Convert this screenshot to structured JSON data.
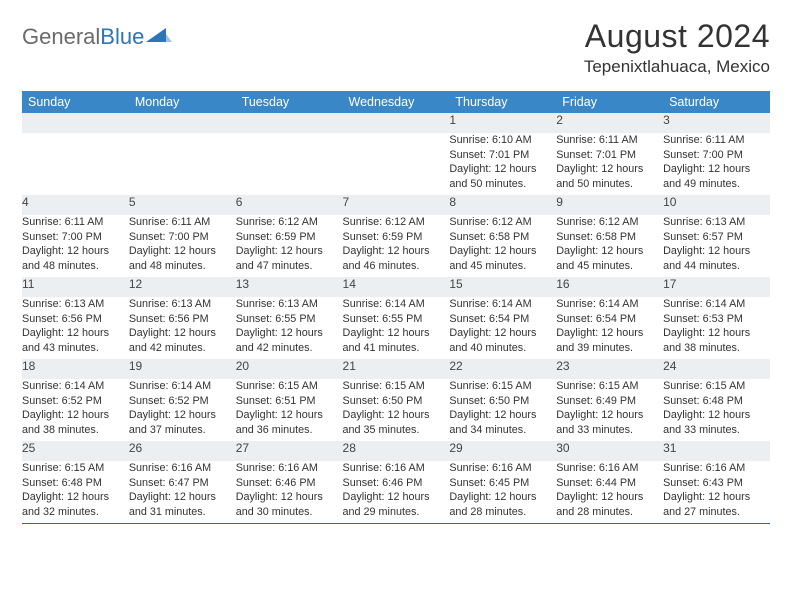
{
  "brand": {
    "part1": "General",
    "part2": "Blue"
  },
  "title": "August 2024",
  "location": "Tepenixtlahuaca, Mexico",
  "colors": {
    "header_bg": "#3a87c7",
    "border": "#2e6ca4",
    "daynum_bg": "#eceff1",
    "text": "#333333",
    "logo_gray": "#6b6b6b",
    "logo_blue": "#2e75b6"
  },
  "day_headers": [
    "Sunday",
    "Monday",
    "Tuesday",
    "Wednesday",
    "Thursday",
    "Friday",
    "Saturday"
  ],
  "weeks": [
    [
      null,
      null,
      null,
      null,
      {
        "n": "1",
        "sr": "6:10 AM",
        "ss": "7:01 PM",
        "dl": "12 hours and 50 minutes."
      },
      {
        "n": "2",
        "sr": "6:11 AM",
        "ss": "7:01 PM",
        "dl": "12 hours and 50 minutes."
      },
      {
        "n": "3",
        "sr": "6:11 AM",
        "ss": "7:00 PM",
        "dl": "12 hours and 49 minutes."
      }
    ],
    [
      {
        "n": "4",
        "sr": "6:11 AM",
        "ss": "7:00 PM",
        "dl": "12 hours and 48 minutes."
      },
      {
        "n": "5",
        "sr": "6:11 AM",
        "ss": "7:00 PM",
        "dl": "12 hours and 48 minutes."
      },
      {
        "n": "6",
        "sr": "6:12 AM",
        "ss": "6:59 PM",
        "dl": "12 hours and 47 minutes."
      },
      {
        "n": "7",
        "sr": "6:12 AM",
        "ss": "6:59 PM",
        "dl": "12 hours and 46 minutes."
      },
      {
        "n": "8",
        "sr": "6:12 AM",
        "ss": "6:58 PM",
        "dl": "12 hours and 45 minutes."
      },
      {
        "n": "9",
        "sr": "6:12 AM",
        "ss": "6:58 PM",
        "dl": "12 hours and 45 minutes."
      },
      {
        "n": "10",
        "sr": "6:13 AM",
        "ss": "6:57 PM",
        "dl": "12 hours and 44 minutes."
      }
    ],
    [
      {
        "n": "11",
        "sr": "6:13 AM",
        "ss": "6:56 PM",
        "dl": "12 hours and 43 minutes."
      },
      {
        "n": "12",
        "sr": "6:13 AM",
        "ss": "6:56 PM",
        "dl": "12 hours and 42 minutes."
      },
      {
        "n": "13",
        "sr": "6:13 AM",
        "ss": "6:55 PM",
        "dl": "12 hours and 42 minutes."
      },
      {
        "n": "14",
        "sr": "6:14 AM",
        "ss": "6:55 PM",
        "dl": "12 hours and 41 minutes."
      },
      {
        "n": "15",
        "sr": "6:14 AM",
        "ss": "6:54 PM",
        "dl": "12 hours and 40 minutes."
      },
      {
        "n": "16",
        "sr": "6:14 AM",
        "ss": "6:54 PM",
        "dl": "12 hours and 39 minutes."
      },
      {
        "n": "17",
        "sr": "6:14 AM",
        "ss": "6:53 PM",
        "dl": "12 hours and 38 minutes."
      }
    ],
    [
      {
        "n": "18",
        "sr": "6:14 AM",
        "ss": "6:52 PM",
        "dl": "12 hours and 38 minutes."
      },
      {
        "n": "19",
        "sr": "6:14 AM",
        "ss": "6:52 PM",
        "dl": "12 hours and 37 minutes."
      },
      {
        "n": "20",
        "sr": "6:15 AM",
        "ss": "6:51 PM",
        "dl": "12 hours and 36 minutes."
      },
      {
        "n": "21",
        "sr": "6:15 AM",
        "ss": "6:50 PM",
        "dl": "12 hours and 35 minutes."
      },
      {
        "n": "22",
        "sr": "6:15 AM",
        "ss": "6:50 PM",
        "dl": "12 hours and 34 minutes."
      },
      {
        "n": "23",
        "sr": "6:15 AM",
        "ss": "6:49 PM",
        "dl": "12 hours and 33 minutes."
      },
      {
        "n": "24",
        "sr": "6:15 AM",
        "ss": "6:48 PM",
        "dl": "12 hours and 33 minutes."
      }
    ],
    [
      {
        "n": "25",
        "sr": "6:15 AM",
        "ss": "6:48 PM",
        "dl": "12 hours and 32 minutes."
      },
      {
        "n": "26",
        "sr": "6:16 AM",
        "ss": "6:47 PM",
        "dl": "12 hours and 31 minutes."
      },
      {
        "n": "27",
        "sr": "6:16 AM",
        "ss": "6:46 PM",
        "dl": "12 hours and 30 minutes."
      },
      {
        "n": "28",
        "sr": "6:16 AM",
        "ss": "6:46 PM",
        "dl": "12 hours and 29 minutes."
      },
      {
        "n": "29",
        "sr": "6:16 AM",
        "ss": "6:45 PM",
        "dl": "12 hours and 28 minutes."
      },
      {
        "n": "30",
        "sr": "6:16 AM",
        "ss": "6:44 PM",
        "dl": "12 hours and 28 minutes."
      },
      {
        "n": "31",
        "sr": "6:16 AM",
        "ss": "6:43 PM",
        "dl": "12 hours and 27 minutes."
      }
    ]
  ],
  "labels": {
    "sunrise": "Sunrise: ",
    "sunset": "Sunset: ",
    "daylight": "Daylight: "
  }
}
